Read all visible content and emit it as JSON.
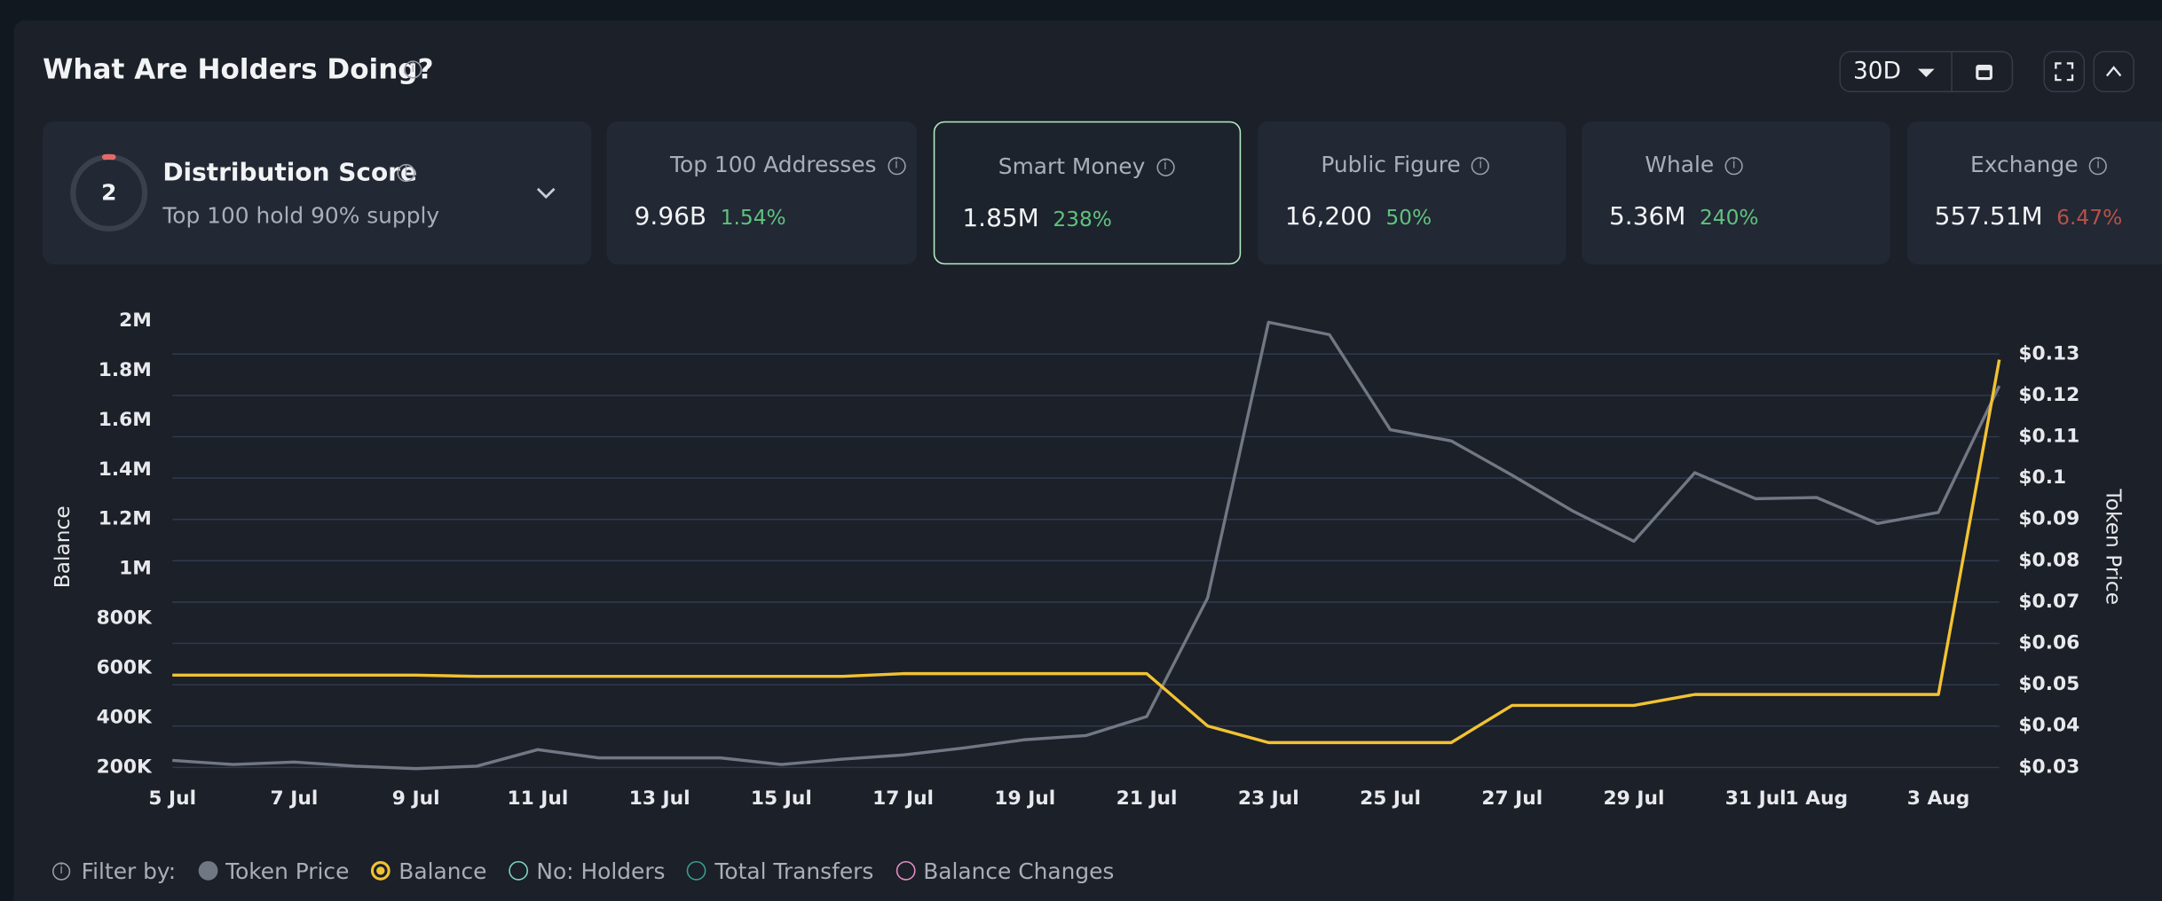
{
  "header": {
    "title": "What Are Holders Doing?",
    "period": "30D"
  },
  "distribution": {
    "label": "Distribution Score",
    "score": 2,
    "caption": "Top 100 hold 90% supply"
  },
  "cards": [
    {
      "label": "Top 100 Addresses",
      "value": "9.96B",
      "change": "1.54%",
      "direction": "up"
    },
    {
      "label": "Smart Money",
      "value": "1.85M",
      "change": "238%",
      "direction": "up",
      "selected": true
    },
    {
      "label": "Public Figure",
      "value": "16,200",
      "change": "50%",
      "direction": "up"
    },
    {
      "label": "Whale",
      "value": "5.36M",
      "change": "240%",
      "direction": "up"
    },
    {
      "label": "Exchange",
      "value": "557.51M",
      "change": "6.47%",
      "direction": "down"
    }
  ],
  "chart_data": {
    "type": "line",
    "y_label": "Balance",
    "y2_label": "Token Price",
    "categories": [
      "5 Jul",
      null,
      "7 Jul",
      null,
      "9 Jul",
      null,
      "11 Jul",
      null,
      "13 Jul",
      null,
      "15 Jul",
      null,
      "17 Jul",
      null,
      "19 Jul",
      null,
      "21 Jul",
      null,
      "23 Jul",
      null,
      "25 Jul",
      null,
      "27 Jul",
      null,
      "29 Jul",
      null,
      "31 Jul",
      "1 Aug",
      null,
      "3 Aug",
      null
    ],
    "series": [
      {
        "name": "Token Price",
        "color": "#727784",
        "axis": "y2",
        "values": [
          0.0317,
          0.0307,
          0.0313,
          0.0303,
          0.0297,
          0.0303,
          0.0343,
          0.0323,
          0.0323,
          0.0323,
          0.0307,
          0.032,
          0.033,
          0.0347,
          0.0367,
          0.0377,
          0.0423,
          0.071,
          0.1377,
          0.1347,
          0.1117,
          0.109,
          0.1007,
          0.092,
          0.0847,
          0.1013,
          0.095,
          0.0953,
          0.089,
          0.0917,
          0.1223
        ]
      },
      {
        "name": "Balance",
        "color": "#f2c232",
        "values": [
          572000,
          572000,
          572000,
          572000,
          572000,
          567000,
          567000,
          567000,
          567000,
          567000,
          567000,
          567000,
          578000,
          578000,
          578000,
          578000,
          578000,
          367000,
          300000,
          300000,
          300000,
          300000,
          450000,
          450000,
          450000,
          494000,
          494000,
          494000,
          494000,
          494000,
          1844000
        ]
      }
    ],
    "ylim": [
      200000,
      2000000
    ],
    "yticks": [
      {
        "value": 200000,
        "label": "200K"
      },
      {
        "value": 400000,
        "label": "400K"
      },
      {
        "value": 600000,
        "label": "600K"
      },
      {
        "value": 800000,
        "label": "800K"
      },
      {
        "value": 1000000,
        "label": "1M"
      },
      {
        "value": 1200000,
        "label": "1.2M"
      },
      {
        "value": 1400000,
        "label": "1.4M"
      },
      {
        "value": 1600000,
        "label": "1.6M"
      },
      {
        "value": 1800000,
        "label": "1.8M"
      },
      {
        "value": 2000000,
        "label": "2M"
      }
    ],
    "y2lim": [
      0.03,
      0.138
    ],
    "y2ticks": [
      {
        "value": 0.03,
        "label": "$0.03"
      },
      {
        "value": 0.04,
        "label": "$0.04"
      },
      {
        "value": 0.05,
        "label": "$0.05"
      },
      {
        "value": 0.06,
        "label": "$0.06"
      },
      {
        "value": 0.07,
        "label": "$0.07"
      },
      {
        "value": 0.08,
        "label": "$0.08"
      },
      {
        "value": 0.09,
        "label": "$0.09"
      },
      {
        "value": 0.1,
        "label": "$0.1"
      },
      {
        "value": 0.11,
        "label": "$0.11"
      },
      {
        "value": 0.12,
        "label": "$0.12"
      },
      {
        "value": 0.13,
        "label": "$0.13"
      }
    ],
    "grid": true
  },
  "filter": {
    "label": "Filter by:",
    "items": [
      {
        "name": "No: Holders",
        "color": "#7fd6c8"
      },
      {
        "name": "Total Transfers",
        "color": "#3a9e8f"
      },
      {
        "name": "Balance Changes",
        "color": "#e58fc4"
      }
    ]
  }
}
